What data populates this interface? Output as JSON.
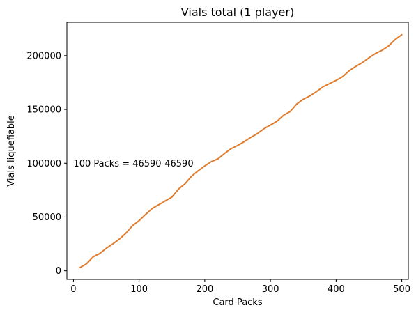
{
  "chart_data": {
    "type": "line",
    "title": "Vials total (1 player)",
    "xlabel": "Card Packs",
    "ylabel": "Vials liquefiable",
    "xlim": [
      -10,
      510
    ],
    "ylim": [
      -8000,
      231000
    ],
    "grid": false,
    "xticks": [
      0,
      100,
      200,
      300,
      400,
      500
    ],
    "xtick_labels": [
      "0",
      "100",
      "200",
      "300",
      "400",
      "500"
    ],
    "yticks": [
      0,
      50000,
      100000,
      150000,
      200000
    ],
    "ytick_labels": [
      "0",
      "50000",
      "100000",
      "150000",
      "200000"
    ],
    "annotation": {
      "text": "100 Packs = 46590-46590",
      "x": 0,
      "y": 100000
    },
    "series": [
      {
        "color": "#e07b2c",
        "x": [
          10,
          20,
          30,
          40,
          50,
          60,
          70,
          80,
          90,
          100,
          110,
          120,
          130,
          140,
          150,
          160,
          170,
          180,
          190,
          200,
          210,
          220,
          230,
          240,
          250,
          260,
          270,
          280,
          290,
          300,
          310,
          320,
          330,
          340,
          350,
          360,
          370,
          380,
          390,
          400,
          410,
          420,
          430,
          440,
          450,
          460,
          470,
          480,
          490,
          500
        ],
        "y": [
          3000,
          6500,
          13000,
          16000,
          21000,
          25000,
          29500,
          35000,
          42000,
          46590,
          52500,
          58000,
          61500,
          65000,
          68500,
          76000,
          81000,
          88000,
          93000,
          97500,
          101500,
          104000,
          109000,
          113500,
          116500,
          120000,
          124000,
          127500,
          132000,
          135500,
          139000,
          144500,
          148000,
          155000,
          159500,
          162500,
          166500,
          171000,
          174000,
          177000,
          180500,
          186000,
          190000,
          193500,
          198000,
          202000,
          205000,
          209000,
          215000,
          219500
        ]
      }
    ]
  }
}
